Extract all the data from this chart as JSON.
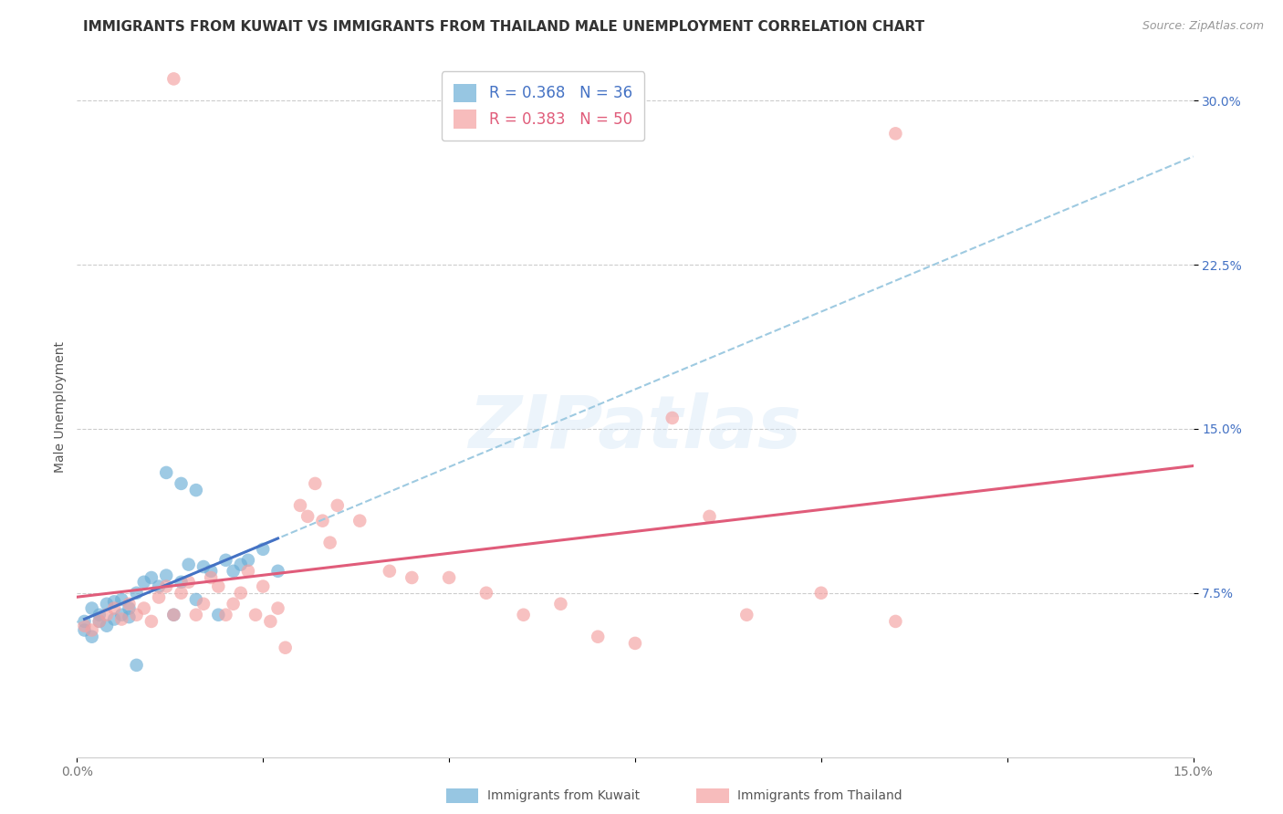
{
  "title": "IMMIGRANTS FROM KUWAIT VS IMMIGRANTS FROM THAILAND MALE UNEMPLOYMENT CORRELATION CHART",
  "source": "Source: ZipAtlas.com",
  "ylabel": "Male Unemployment",
  "ytick_labels": [
    "7.5%",
    "15.0%",
    "22.5%",
    "30.0%"
  ],
  "ytick_values": [
    0.075,
    0.15,
    0.225,
    0.3
  ],
  "xlim": [
    0.0,
    0.15
  ],
  "ylim": [
    0.0,
    0.32
  ],
  "kuwait_scatter": [
    [
      0.001,
      0.062
    ],
    [
      0.001,
      0.058
    ],
    [
      0.002,
      0.055
    ],
    [
      0.002,
      0.068
    ],
    [
      0.003,
      0.062
    ],
    [
      0.003,
      0.065
    ],
    [
      0.004,
      0.06
    ],
    [
      0.004,
      0.07
    ],
    [
      0.005,
      0.063
    ],
    [
      0.005,
      0.071
    ],
    [
      0.006,
      0.065
    ],
    [
      0.006,
      0.072
    ],
    [
      0.007,
      0.064
    ],
    [
      0.007,
      0.068
    ],
    [
      0.008,
      0.075
    ],
    [
      0.009,
      0.08
    ],
    [
      0.01,
      0.082
    ],
    [
      0.011,
      0.078
    ],
    [
      0.012,
      0.083
    ],
    [
      0.013,
      0.065
    ],
    [
      0.014,
      0.08
    ],
    [
      0.015,
      0.088
    ],
    [
      0.016,
      0.072
    ],
    [
      0.017,
      0.087
    ],
    [
      0.018,
      0.085
    ],
    [
      0.019,
      0.065
    ],
    [
      0.02,
      0.09
    ],
    [
      0.021,
      0.085
    ],
    [
      0.022,
      0.088
    ],
    [
      0.023,
      0.09
    ],
    [
      0.025,
      0.095
    ],
    [
      0.027,
      0.085
    ],
    [
      0.012,
      0.13
    ],
    [
      0.014,
      0.125
    ],
    [
      0.016,
      0.122
    ],
    [
      0.008,
      0.042
    ]
  ],
  "thailand_scatter": [
    [
      0.001,
      0.06
    ],
    [
      0.002,
      0.058
    ],
    [
      0.003,
      0.062
    ],
    [
      0.004,
      0.065
    ],
    [
      0.005,
      0.068
    ],
    [
      0.006,
      0.063
    ],
    [
      0.007,
      0.07
    ],
    [
      0.008,
      0.065
    ],
    [
      0.009,
      0.068
    ],
    [
      0.01,
      0.062
    ],
    [
      0.011,
      0.073
    ],
    [
      0.012,
      0.078
    ],
    [
      0.013,
      0.065
    ],
    [
      0.014,
      0.075
    ],
    [
      0.015,
      0.08
    ],
    [
      0.016,
      0.065
    ],
    [
      0.017,
      0.07
    ],
    [
      0.018,
      0.082
    ],
    [
      0.019,
      0.078
    ],
    [
      0.02,
      0.065
    ],
    [
      0.021,
      0.07
    ],
    [
      0.022,
      0.075
    ],
    [
      0.023,
      0.085
    ],
    [
      0.024,
      0.065
    ],
    [
      0.025,
      0.078
    ],
    [
      0.026,
      0.062
    ],
    [
      0.027,
      0.068
    ],
    [
      0.028,
      0.05
    ],
    [
      0.03,
      0.115
    ],
    [
      0.031,
      0.11
    ],
    [
      0.032,
      0.125
    ],
    [
      0.033,
      0.108
    ],
    [
      0.034,
      0.098
    ],
    [
      0.035,
      0.115
    ],
    [
      0.038,
      0.108
    ],
    [
      0.042,
      0.085
    ],
    [
      0.045,
      0.082
    ],
    [
      0.05,
      0.082
    ],
    [
      0.055,
      0.075
    ],
    [
      0.06,
      0.065
    ],
    [
      0.065,
      0.07
    ],
    [
      0.07,
      0.055
    ],
    [
      0.075,
      0.052
    ],
    [
      0.08,
      0.155
    ],
    [
      0.085,
      0.11
    ],
    [
      0.09,
      0.065
    ],
    [
      0.1,
      0.075
    ],
    [
      0.11,
      0.062
    ],
    [
      0.013,
      0.31
    ],
    [
      0.11,
      0.285
    ]
  ],
  "kuwait_color": "#6baed6",
  "thailand_color": "#f4a0a0",
  "kuwait_line_color": "#4472c4",
  "thailand_line_color": "#e05c7a",
  "dashed_line_color": "#9ecae1",
  "background_color": "#ffffff",
  "watermark_text": "ZIPatlas",
  "title_fontsize": 11,
  "axis_label_fontsize": 10,
  "tick_fontsize": 10,
  "legend_label1": "R = 0.368   N = 36",
  "legend_label2": "R = 0.383   N = 50",
  "legend_text_color1": "#4472c4",
  "legend_text_color2": "#e05c7a",
  "bottom_legend1": "Immigrants from Kuwait",
  "bottom_legend2": "Immigrants from Thailand"
}
